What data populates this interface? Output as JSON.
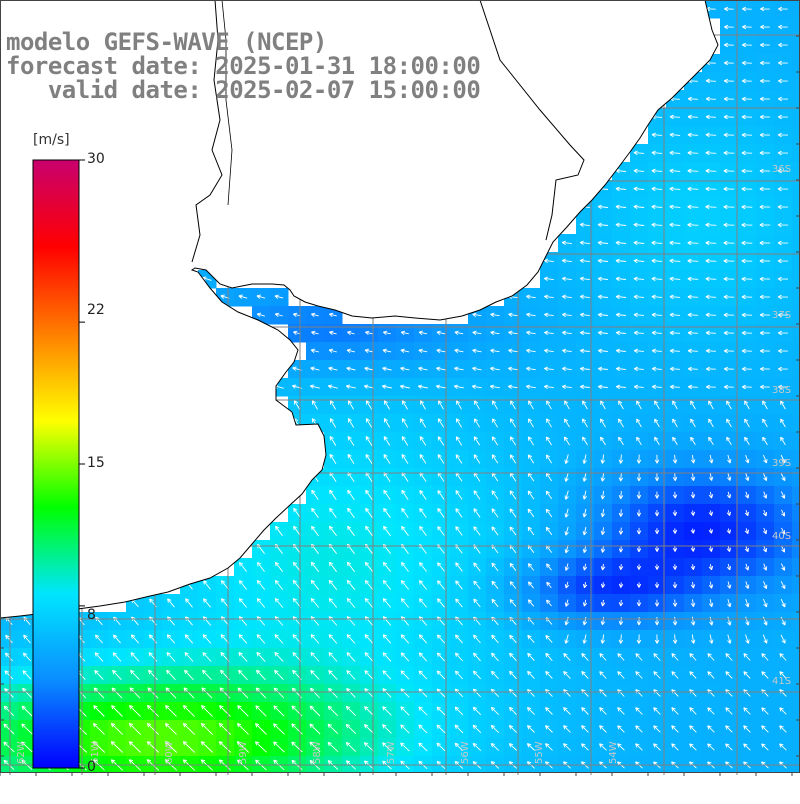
{
  "header": {
    "title": "modelo GEFS-WAVE (NCEP)",
    "forecast_line": "forecast date: 2025-01-31 18:00:00",
    "valid_line": "   valid date: 2025-02-07 15:00:00"
  },
  "colorbar": {
    "unit": "[m/s]",
    "ticks": [
      "30",
      "22",
      "15",
      "8",
      "0"
    ],
    "tick_values": [
      30,
      22,
      15,
      8,
      0
    ],
    "min": 0,
    "max": 30,
    "colors": [
      "#0000ff",
      "#0a8cff",
      "#00e5ff",
      "#00ff00",
      "#ffff00",
      "#ff7f00",
      "#ff0000",
      "#c8006e"
    ]
  },
  "latitude_labels": [
    "36S",
    "37S",
    "38S",
    "39S",
    "40S",
    "41S"
  ],
  "longitude_labels": [
    "62W",
    "61W",
    "60W",
    "59W",
    "58W",
    "57W",
    "56W",
    "55W",
    "54W"
  ],
  "colors": {
    "land": "#ffffff",
    "coast": "#000000",
    "grid": "#808080",
    "header_text": "#808080"
  }
}
